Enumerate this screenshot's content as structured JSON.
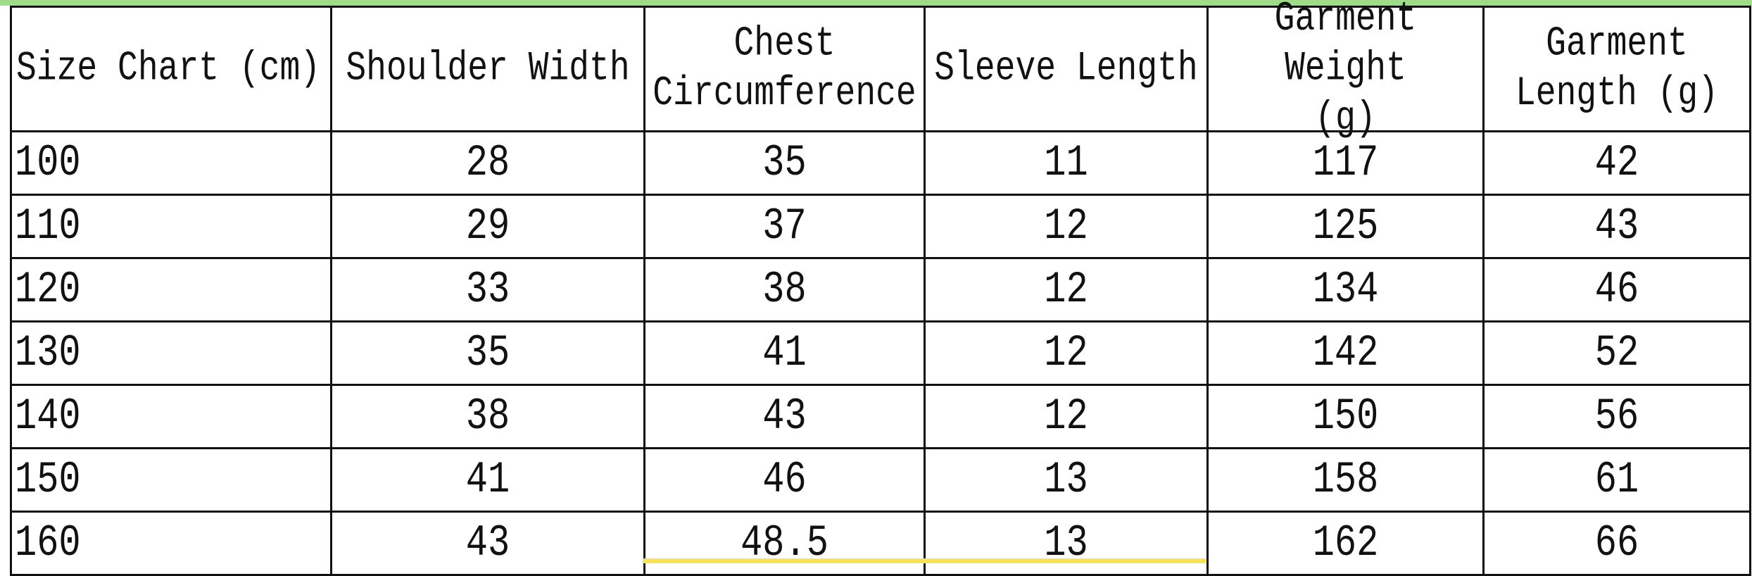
{
  "headers": [
    "Size Chart (cm)",
    "Shoulder Width",
    "Chest Circumference",
    "Sleeve Length",
    "Garment Weight (g)",
    "Garment Length (g)"
  ],
  "header_lines": [
    [
      "Size Chart (cm)"
    ],
    [
      "Shoulder Width"
    ],
    [
      "Chest",
      "Circumference"
    ],
    [
      "Sleeve Length"
    ],
    [
      "Garment Weight",
      "(g)"
    ],
    [
      "Garment",
      "Length (g)"
    ]
  ],
  "rows": [
    [
      "100",
      "28",
      "35",
      "11",
      "117",
      "42"
    ],
    [
      "110",
      "29",
      "37",
      "12",
      "125",
      "43"
    ],
    [
      "120",
      "33",
      "38",
      "12",
      "134",
      "46"
    ],
    [
      "130",
      "35",
      "41",
      "12",
      "142",
      "52"
    ],
    [
      "140",
      "38",
      "43",
      "12",
      "150",
      "56"
    ],
    [
      "150",
      "41",
      "46",
      "13",
      "158",
      "61"
    ],
    [
      "160",
      "43",
      "48.5",
      "13",
      "162",
      "66"
    ]
  ],
  "colors": {
    "top_strip": "#9fdc8a",
    "bottom_highlight": "#f7e35a",
    "border": "#111111"
  }
}
